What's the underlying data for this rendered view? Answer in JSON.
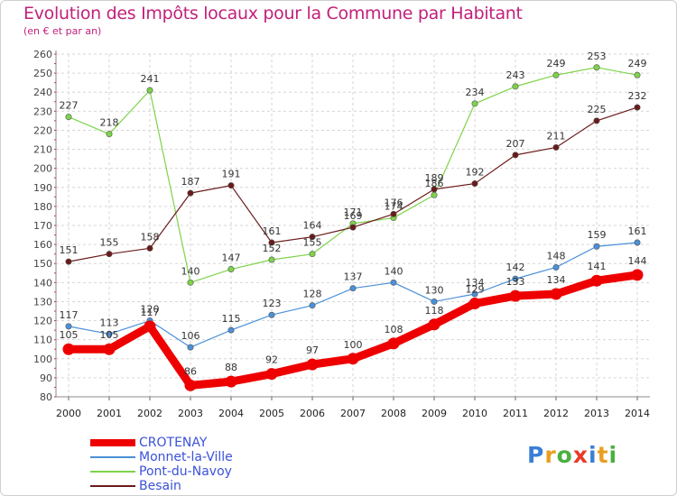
{
  "chart_data": {
    "type": "line",
    "title": "Evolution des Impôts locaux pour la Commune par Habitant",
    "subtitle": "(en € et par an)",
    "x": [
      "2000",
      "2001",
      "2002",
      "2003",
      "2004",
      "2005",
      "2006",
      "2007",
      "2008",
      "2009",
      "2010",
      "2011",
      "2012",
      "2013",
      "2014"
    ],
    "ylim": [
      80,
      260
    ],
    "yticks": [
      80,
      90,
      100,
      110,
      120,
      130,
      140,
      150,
      160,
      170,
      180,
      190,
      200,
      210,
      220,
      230,
      240,
      250,
      260
    ],
    "grid": true,
    "legend_position": "bottom-left",
    "series": [
      {
        "name": "CROTENAY",
        "color": "#ee0000",
        "values": [
          105,
          105,
          117,
          86,
          88,
          92,
          97,
          100,
          108,
          118,
          129,
          133,
          134,
          141,
          144
        ]
      },
      {
        "name": "Monnet-la-Ville",
        "color": "#4a90d9",
        "values": [
          117,
          113,
          120,
          106,
          115,
          123,
          128,
          137,
          140,
          130,
          134,
          142,
          148,
          159,
          161
        ]
      },
      {
        "name": "Pont-du-Navoy",
        "color": "#7dd34a",
        "values": [
          227,
          218,
          241,
          140,
          147,
          152,
          155,
          171,
          174,
          186,
          234,
          243,
          249,
          253,
          249
        ]
      },
      {
        "name": "Besain",
        "color": "#6b1a1a",
        "values": [
          151,
          155,
          158,
          187,
          191,
          161,
          164,
          169,
          176,
          189,
          192,
          207,
          211,
          225,
          232
        ]
      }
    ]
  },
  "logo": {
    "text": "Proxiti",
    "colors": [
      "#3a7fd5",
      "#e8a020",
      "#4ab040",
      "#e83a2a",
      "#3a7fd5",
      "#e8a020",
      "#4ab040"
    ]
  }
}
